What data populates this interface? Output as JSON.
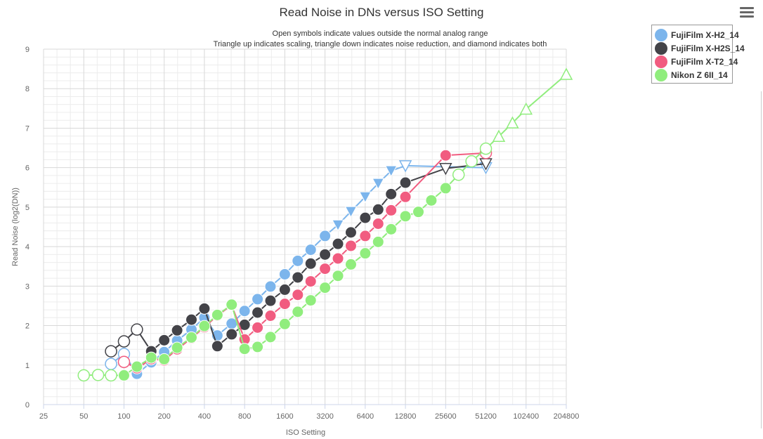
{
  "chart_data": {
    "type": "line",
    "title": "Read Noise in DNs versus ISO Setting",
    "subtitle_lines": [
      "Open symbols indicate values outside the normal analog range",
      "Triangle up indicates scaling, triangle down indicates noise reduction, and diamond indicates both"
    ],
    "xlabel": "ISO Setting",
    "ylabel": "Read Noise (log2(DN))",
    "x_scale": "log2",
    "xlim": [
      25,
      204800
    ],
    "ylim": [
      0,
      9
    ],
    "x_ticks": [
      "25",
      "50",
      "100",
      "200",
      "400",
      "800",
      "1600",
      "3200",
      "6400",
      "12800",
      "25600",
      "51200",
      "102400",
      "204800"
    ],
    "y_ticks": [
      "0",
      "1",
      "2",
      "3",
      "4",
      "5",
      "6",
      "7",
      "8",
      "9"
    ],
    "grid": true,
    "legend_position": "top-right",
    "series": [
      {
        "name": "FujiFilm X-H2_14",
        "color": "#7cb5ec",
        "points": [
          {
            "x": 80,
            "y": 1.03,
            "m": "oc"
          },
          {
            "x": 100,
            "y": 1.28,
            "m": "oc"
          },
          {
            "x": 125,
            "y": 0.78,
            "m": "c"
          },
          {
            "x": 160,
            "y": 1.07,
            "m": "c"
          },
          {
            "x": 200,
            "y": 1.33,
            "m": "c"
          },
          {
            "x": 250,
            "y": 1.62,
            "m": "c"
          },
          {
            "x": 320,
            "y": 1.9,
            "m": "c"
          },
          {
            "x": 400,
            "y": 2.2,
            "m": "c"
          },
          {
            "x": 500,
            "y": 1.75,
            "m": "c"
          },
          {
            "x": 640,
            "y": 2.05,
            "m": "c"
          },
          {
            "x": 800,
            "y": 2.37,
            "m": "c"
          },
          {
            "x": 1000,
            "y": 2.67,
            "m": "c"
          },
          {
            "x": 1250,
            "y": 2.99,
            "m": "c"
          },
          {
            "x": 1600,
            "y": 3.3,
            "m": "c"
          },
          {
            "x": 2000,
            "y": 3.64,
            "m": "c"
          },
          {
            "x": 2500,
            "y": 3.92,
            "m": "c"
          },
          {
            "x": 3200,
            "y": 4.27,
            "m": "c"
          },
          {
            "x": 4000,
            "y": 4.55,
            "m": "td"
          },
          {
            "x": 5000,
            "y": 4.89,
            "m": "td"
          },
          {
            "x": 6400,
            "y": 5.26,
            "m": "td"
          },
          {
            "x": 8000,
            "y": 5.6,
            "m": "td"
          },
          {
            "x": 10000,
            "y": 5.92,
            "m": "td"
          },
          {
            "x": 12800,
            "y": 6.05,
            "m": "otd"
          },
          {
            "x": 51200,
            "y": 6.0,
            "m": "otd"
          }
        ]
      },
      {
        "name": "FujiFilm X-H2S_14",
        "color": "#434348",
        "points": [
          {
            "x": 80,
            "y": 1.35,
            "m": "oc"
          },
          {
            "x": 100,
            "y": 1.6,
            "m": "oc"
          },
          {
            "x": 125,
            "y": 1.9,
            "m": "oc"
          },
          {
            "x": 160,
            "y": 1.35,
            "m": "c"
          },
          {
            "x": 200,
            "y": 1.63,
            "m": "c"
          },
          {
            "x": 250,
            "y": 1.88,
            "m": "c"
          },
          {
            "x": 320,
            "y": 2.15,
            "m": "c"
          },
          {
            "x": 400,
            "y": 2.43,
            "m": "c"
          },
          {
            "x": 500,
            "y": 1.48,
            "m": "c"
          },
          {
            "x": 640,
            "y": 1.78,
            "m": "c"
          },
          {
            "x": 800,
            "y": 2.02,
            "m": "c"
          },
          {
            "x": 1000,
            "y": 2.33,
            "m": "c"
          },
          {
            "x": 1250,
            "y": 2.63,
            "m": "c"
          },
          {
            "x": 1600,
            "y": 2.91,
            "m": "c"
          },
          {
            "x": 2000,
            "y": 3.22,
            "m": "c"
          },
          {
            "x": 2500,
            "y": 3.57,
            "m": "c"
          },
          {
            "x": 3200,
            "y": 3.8,
            "m": "c"
          },
          {
            "x": 4000,
            "y": 4.07,
            "m": "c"
          },
          {
            "x": 5000,
            "y": 4.36,
            "m": "c"
          },
          {
            "x": 6400,
            "y": 4.73,
            "m": "c"
          },
          {
            "x": 8000,
            "y": 4.94,
            "m": "c"
          },
          {
            "x": 10000,
            "y": 5.33,
            "m": "c"
          },
          {
            "x": 12800,
            "y": 5.62,
            "m": "c"
          },
          {
            "x": 25600,
            "y": 5.98,
            "m": "otd"
          },
          {
            "x": 51200,
            "y": 6.1,
            "m": "otd"
          }
        ]
      },
      {
        "name": "FujiFilm X-T2_14",
        "color": "#f15c80",
        "points": [
          {
            "x": 100,
            "y": 1.08,
            "m": "oc"
          },
          {
            "x": 125,
            "y": 0.92,
            "m": "c"
          },
          {
            "x": 160,
            "y": 1.15,
            "m": "c"
          },
          {
            "x": 200,
            "y": 1.12,
            "m": "c"
          },
          {
            "x": 250,
            "y": 1.4,
            "m": "c"
          },
          {
            "x": 320,
            "y": 1.68,
            "m": "c"
          },
          {
            "x": 400,
            "y": 1.96,
            "m": "c"
          },
          {
            "x": 500,
            "y": 2.25,
            "m": "c"
          },
          {
            "x": 640,
            "y": 2.52,
            "m": "c"
          },
          {
            "x": 800,
            "y": 1.65,
            "m": "c"
          },
          {
            "x": 1000,
            "y": 1.95,
            "m": "c"
          },
          {
            "x": 1250,
            "y": 2.25,
            "m": "c"
          },
          {
            "x": 1600,
            "y": 2.55,
            "m": "c"
          },
          {
            "x": 2000,
            "y": 2.78,
            "m": "c"
          },
          {
            "x": 2500,
            "y": 3.12,
            "m": "c"
          },
          {
            "x": 3200,
            "y": 3.44,
            "m": "c"
          },
          {
            "x": 4000,
            "y": 3.7,
            "m": "c"
          },
          {
            "x": 5000,
            "y": 4.02,
            "m": "c"
          },
          {
            "x": 6400,
            "y": 4.27,
            "m": "c"
          },
          {
            "x": 8000,
            "y": 4.58,
            "m": "c"
          },
          {
            "x": 10000,
            "y": 4.92,
            "m": "c"
          },
          {
            "x": 12800,
            "y": 5.26,
            "m": "c"
          },
          {
            "x": 25600,
            "y": 6.31,
            "m": "c"
          },
          {
            "x": 51200,
            "y": 6.37,
            "m": "oc"
          }
        ]
      },
      {
        "name": "Nikon Z 6II_14",
        "color": "#90ed7d",
        "points": [
          {
            "x": 50,
            "y": 0.74,
            "m": "oc"
          },
          {
            "x": 64,
            "y": 0.75,
            "m": "oc"
          },
          {
            "x": 80,
            "y": 0.74,
            "m": "oc"
          },
          {
            "x": 100,
            "y": 0.74,
            "m": "c"
          },
          {
            "x": 125,
            "y": 0.96,
            "m": "c"
          },
          {
            "x": 160,
            "y": 1.19,
            "m": "c"
          },
          {
            "x": 200,
            "y": 1.15,
            "m": "c"
          },
          {
            "x": 250,
            "y": 1.44,
            "m": "c"
          },
          {
            "x": 320,
            "y": 1.7,
            "m": "c"
          },
          {
            "x": 400,
            "y": 1.99,
            "m": "c"
          },
          {
            "x": 500,
            "y": 2.27,
            "m": "c"
          },
          {
            "x": 640,
            "y": 2.53,
            "m": "c"
          },
          {
            "x": 800,
            "y": 1.41,
            "m": "c"
          },
          {
            "x": 1000,
            "y": 1.46,
            "m": "c"
          },
          {
            "x": 1250,
            "y": 1.71,
            "m": "c"
          },
          {
            "x": 1600,
            "y": 2.04,
            "m": "c"
          },
          {
            "x": 2000,
            "y": 2.35,
            "m": "c"
          },
          {
            "x": 2500,
            "y": 2.64,
            "m": "c"
          },
          {
            "x": 3200,
            "y": 2.96,
            "m": "c"
          },
          {
            "x": 4000,
            "y": 3.26,
            "m": "c"
          },
          {
            "x": 5000,
            "y": 3.55,
            "m": "c"
          },
          {
            "x": 6400,
            "y": 3.83,
            "m": "c"
          },
          {
            "x": 8000,
            "y": 4.12,
            "m": "c"
          },
          {
            "x": 10000,
            "y": 4.44,
            "m": "c"
          },
          {
            "x": 12800,
            "y": 4.77,
            "m": "c"
          },
          {
            "x": 16000,
            "y": 4.88,
            "m": "c"
          },
          {
            "x": 20000,
            "y": 5.17,
            "m": "c"
          },
          {
            "x": 25600,
            "y": 5.48,
            "m": "c"
          },
          {
            "x": 32000,
            "y": 5.82,
            "m": "oc"
          },
          {
            "x": 40000,
            "y": 6.16,
            "m": "oc"
          },
          {
            "x": 51200,
            "y": 6.48,
            "m": "oc"
          },
          {
            "x": 64000,
            "y": 6.79,
            "m": "otu"
          },
          {
            "x": 81000,
            "y": 7.13,
            "m": "otu"
          },
          {
            "x": 102400,
            "y": 7.48,
            "m": "otu"
          },
          {
            "x": 204800,
            "y": 8.36,
            "m": "otu"
          }
        ]
      }
    ]
  }
}
